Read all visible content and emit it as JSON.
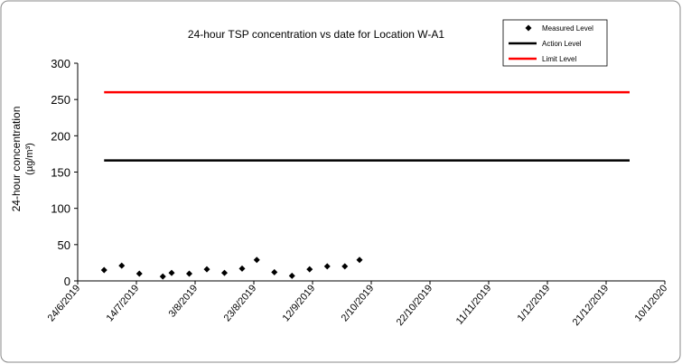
{
  "chart_data": {
    "type": "scatter",
    "title": "24-hour TSP concentration vs date for Location W-A1",
    "ylabel": [
      "24-hour concentration",
      "(µg/m³)"
    ],
    "xlim": [
      "24/6/2019",
      "10/1/2020"
    ],
    "xticks": [
      "24/6/2019",
      "14/7/2019",
      "3/8/2019",
      "23/8/2019",
      "12/9/2019",
      "2/10/2019",
      "22/10/2019",
      "11/11/2019",
      "1/12/2019",
      "21/12/2019",
      "10/1/2020"
    ],
    "ylim": [
      0,
      300
    ],
    "yticks": [
      0,
      50,
      100,
      150,
      200,
      250,
      300
    ],
    "legend": "top-right",
    "series": [
      {
        "name": "Measured Level",
        "kind": "points",
        "color": "#000000",
        "x": [
          "3/7/2019",
          "9/7/2019",
          "15/7/2019",
          "23/7/2019",
          "26/7/2019",
          "1/8/2019",
          "7/8/2019",
          "13/8/2019",
          "19/8/2019",
          "24/8/2019",
          "30/8/2019",
          "5/9/2019",
          "11/9/2019",
          "17/9/2019",
          "23/9/2019",
          "28/9/2019"
        ],
        "values": [
          15,
          21,
          10,
          6,
          11,
          10,
          16,
          11,
          17,
          29,
          12,
          7,
          16,
          20,
          20,
          29
        ]
      },
      {
        "name": "Action Level",
        "kind": "line",
        "color": "#000000",
        "x": [
          "3/7/2019",
          "29/12/2019"
        ],
        "values": [
          166,
          166
        ]
      },
      {
        "name": "Limit Level",
        "kind": "line",
        "color": "#ff0000",
        "x": [
          "3/7/2019",
          "29/12/2019"
        ],
        "values": [
          260,
          260
        ]
      }
    ]
  }
}
